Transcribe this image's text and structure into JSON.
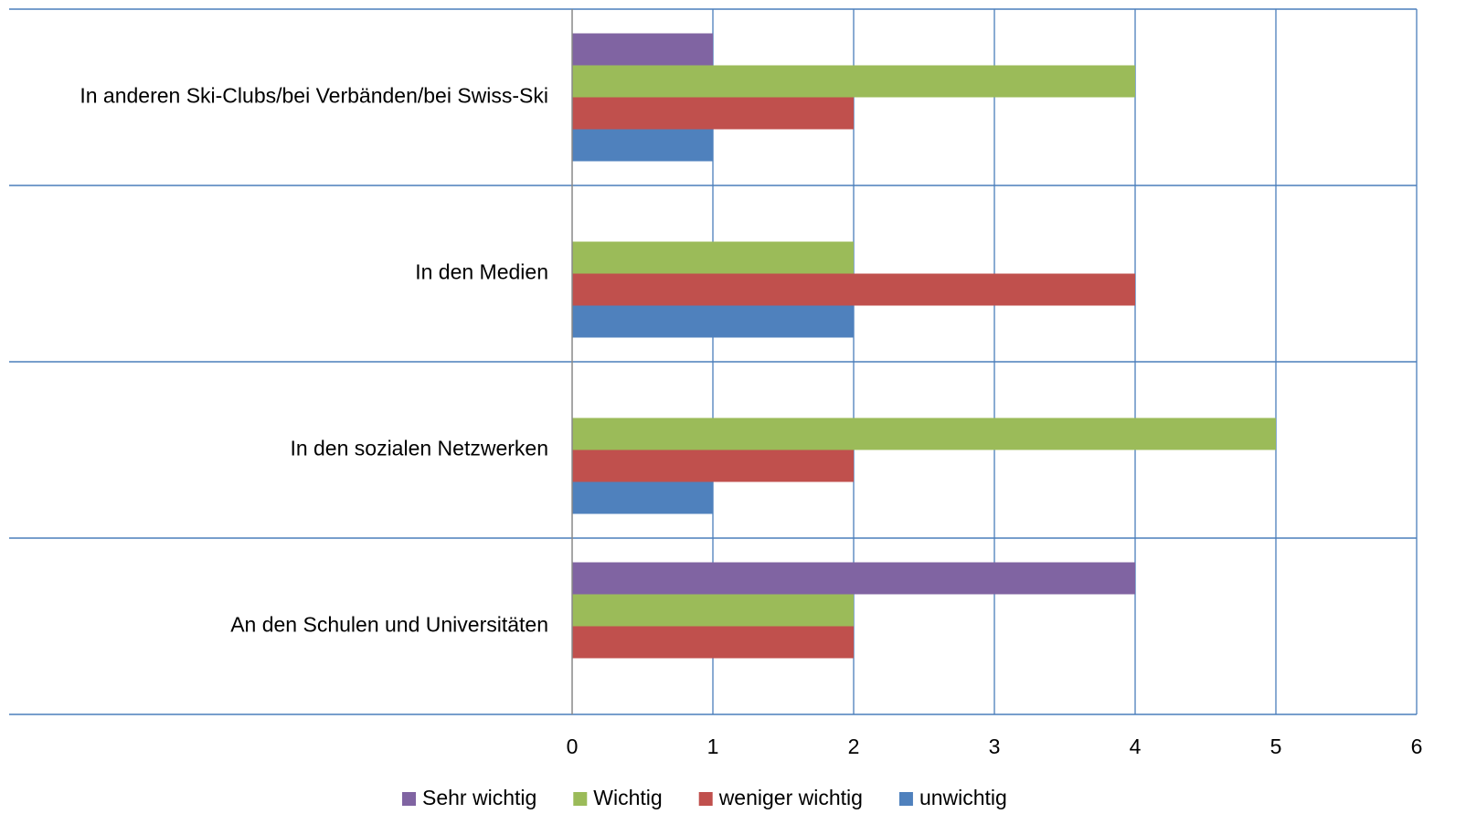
{
  "chart_data": {
    "type": "barh",
    "categories": [
      "In anderen Ski-Clubs/bei Verbänden/bei Swiss-Ski",
      "In den Medien",
      "In den sozialen Netzwerken",
      "An den Schulen und Universitäten"
    ],
    "series": [
      {
        "name": "Sehr wichtig",
        "color": "#8064a2",
        "values": [
          1,
          0,
          0,
          4
        ]
      },
      {
        "name": "Wichtig",
        "color": "#9bbb59",
        "values": [
          4,
          2,
          5,
          2
        ]
      },
      {
        "name": "weniger wichtig",
        "color": "#c0504d",
        "values": [
          2,
          4,
          2,
          2
        ]
      },
      {
        "name": "unwichtig",
        "color": "#4f81bd",
        "values": [
          1,
          2,
          1,
          0
        ]
      }
    ],
    "xlim": [
      0,
      6
    ],
    "xticks": [
      0,
      1,
      2,
      3,
      4,
      5,
      6
    ],
    "grid": true,
    "legend": "bottom"
  }
}
